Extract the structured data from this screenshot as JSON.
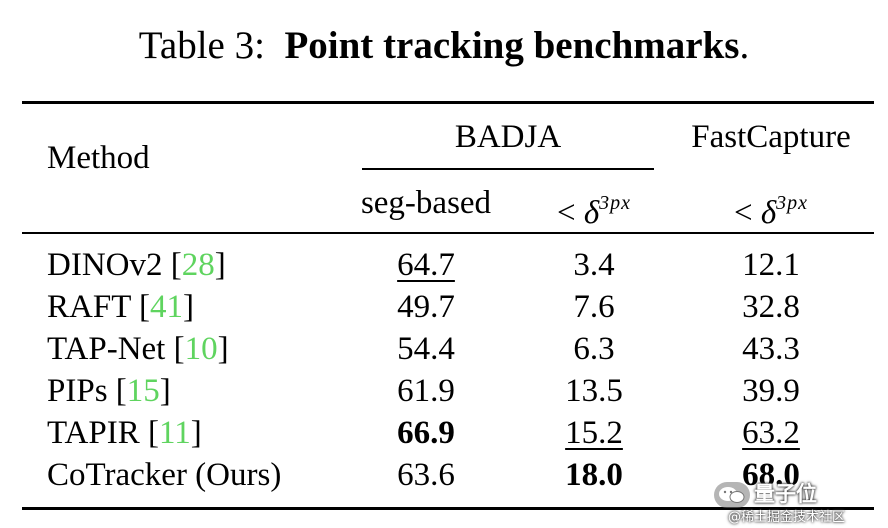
{
  "caption": {
    "prefix": "Table 3:",
    "title": "Point tracking benchmarks",
    "suffix": "."
  },
  "header": {
    "method": "Method",
    "group_badja": "BADJA",
    "group_fastcapture": "FastCapture",
    "sub_seg": "seg-based",
    "sub_lt": "<",
    "sub_delta": "δ",
    "sub_sup": "3px"
  },
  "rows": [
    {
      "name": "DINOv2 [",
      "cite": "28",
      "close": "]",
      "seg": "64.7",
      "badja": "3.4",
      "fast": "12.1"
    },
    {
      "name": "RAFT [",
      "cite": "41",
      "close": "]",
      "seg": "49.7",
      "badja": "7.6",
      "fast": "32.8"
    },
    {
      "name": "TAP-Net [",
      "cite": "10",
      "close": "]",
      "seg": "54.4",
      "badja": "6.3",
      "fast": "43.3"
    },
    {
      "name": "PIPs [",
      "cite": "15",
      "close": "]",
      "seg": "61.9",
      "badja": "13.5",
      "fast": "39.9"
    },
    {
      "name": "TAPIR [",
      "cite": "11",
      "close": "]",
      "seg": "66.9",
      "badja": "15.2",
      "fast": "63.2"
    },
    {
      "name": "CoTracker (Ours)",
      "cite": "",
      "close": "",
      "seg": "63.6",
      "badja": "18.0",
      "fast": "68.0"
    }
  ],
  "emphasis": {
    "bold": [
      "rows.4.seg",
      "rows.5.badja",
      "rows.5.fast"
    ],
    "underline": [
      "rows.0.seg",
      "rows.4.badja",
      "rows.4.fast"
    ]
  },
  "colors": {
    "citation": "#5fd45f"
  },
  "watermark": {
    "name": "量子位",
    "sub": "@稀土掘金技术社区",
    "icon": "wechat-icon"
  }
}
